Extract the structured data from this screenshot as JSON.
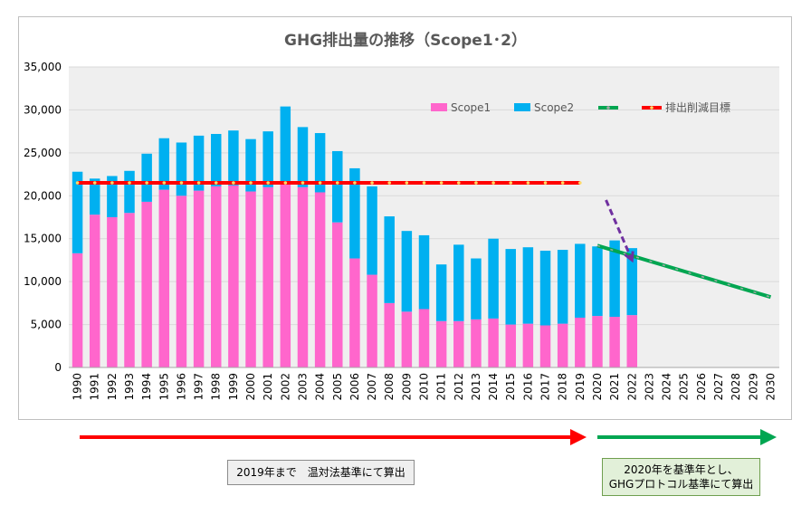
{
  "chart_data": {
    "type": "bar",
    "title": "GHG排出量の推移（Scope1･2）",
    "categories": [
      "1990",
      "1991",
      "1992",
      "1993",
      "1994",
      "1995",
      "1996",
      "1997",
      "1998",
      "1999",
      "2000",
      "2001",
      "2002",
      "2003",
      "2004",
      "2005",
      "2006",
      "2007",
      "2008",
      "2009",
      "2010",
      "2011",
      "2012",
      "2013",
      "2014",
      "2015",
      "2016",
      "2017",
      "2018",
      "2019",
      "2020",
      "2021",
      "2022",
      "2023",
      "2024",
      "2025",
      "2026",
      "2027",
      "2028",
      "2029",
      "2030"
    ],
    "stacked": true,
    "series": [
      {
        "name": "Scope1",
        "color": "#ff66cc",
        "values": [
          13300,
          17800,
          17500,
          18000,
          19300,
          20700,
          20000,
          20600,
          21100,
          21200,
          20500,
          21000,
          21400,
          21000,
          20400,
          16900,
          12700,
          10800,
          7500,
          6500,
          6800,
          5400,
          5400,
          5600,
          5700,
          5000,
          5100,
          4900,
          5100,
          5800,
          6000,
          5900,
          6100,
          null,
          null,
          null,
          null,
          null,
          null,
          null,
          null
        ]
      },
      {
        "name": "Scope2",
        "color": "#00b0f0",
        "values": [
          9500,
          4200,
          4800,
          4900,
          5600,
          6000,
          6200,
          6400,
          6100,
          6400,
          6100,
          6500,
          9000,
          7000,
          6900,
          8300,
          10500,
          10300,
          10100,
          9400,
          8600,
          6600,
          8900,
          7100,
          9300,
          8800,
          8900,
          8700,
          8600,
          8600,
          8100,
          8900,
          7800,
          null,
          null,
          null,
          null,
          null,
          null,
          null,
          null
        ]
      }
    ],
    "target_line": {
      "name": "排出削減目標",
      "color": "#ff0000",
      "marker_color": "#ffd966",
      "from": "1990",
      "to": "2019",
      "value": 21500
    },
    "trend_line": {
      "color": "#00a651",
      "dash_color": "#a6a6a6",
      "points": [
        {
          "x": "2020",
          "y": 14200
        },
        {
          "x": "2030",
          "y": 8200
        }
      ]
    },
    "indicator_arrow": {
      "color": "#7030a0",
      "from": {
        "x": "2020.5",
        "y": 19500
      },
      "to": {
        "x": "2022",
        "y": 12500
      }
    },
    "yticks": [
      "0",
      "5,000",
      "10,000",
      "15,000",
      "20,000",
      "25,000",
      "30,000",
      "35,000"
    ],
    "ylim": [
      0,
      35000
    ],
    "grid": true,
    "plot_background": "#efefef",
    "legend_position": "top-right",
    "legend": [
      "Scope1",
      "Scope2",
      "",
      "排出削減目標"
    ]
  },
  "notes": {
    "left_label": "2019年まで　温対法基準にて算出",
    "right_label_line1": "2020年を基準年とし、",
    "right_label_line2": "GHGプロトコル基準にて算出",
    "left_arrow_color": "#ff0000",
    "right_arrow_color": "#00a651"
  }
}
